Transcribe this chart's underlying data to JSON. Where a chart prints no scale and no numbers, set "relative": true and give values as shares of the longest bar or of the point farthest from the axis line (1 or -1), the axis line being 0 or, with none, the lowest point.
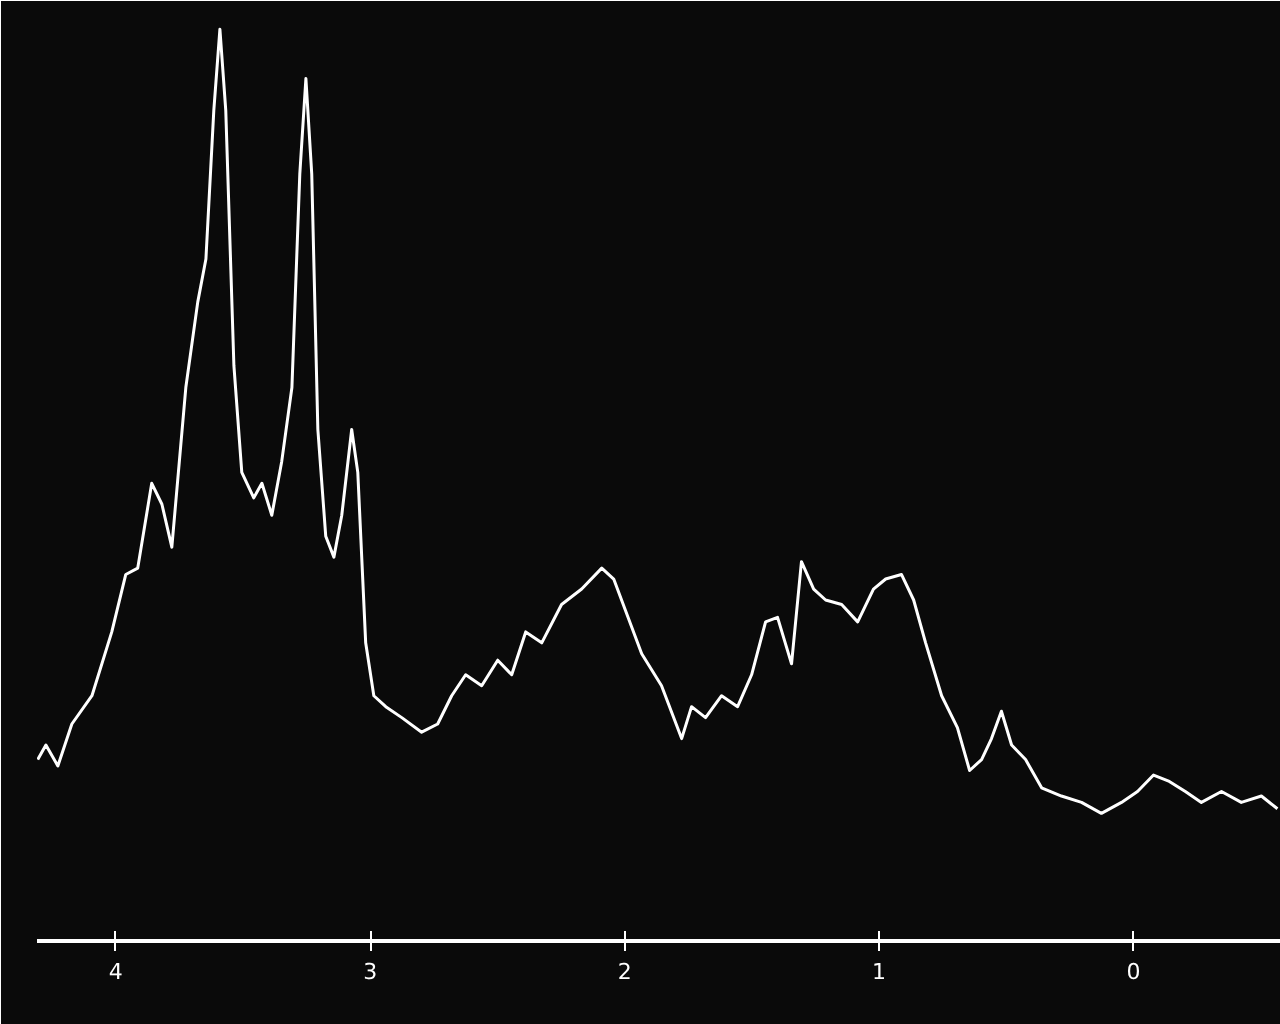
{
  "chart_data": {
    "type": "line",
    "relative": true,
    "xlim": [
      4.31,
      -0.58
    ],
    "xticks": [
      4,
      3,
      2,
      1,
      0
    ],
    "grid": false,
    "marker": "none",
    "line_style": "solid",
    "series": [
      {
        "color": "#ffffff",
        "x": [
          4.307,
          4.275,
          4.228,
          4.173,
          4.094,
          4.016,
          3.961,
          3.914,
          3.859,
          3.819,
          3.78,
          3.725,
          3.678,
          3.646,
          3.615,
          3.591,
          3.568,
          3.536,
          3.505,
          3.458,
          3.426,
          3.387,
          3.348,
          3.308,
          3.277,
          3.253,
          3.23,
          3.206,
          3.175,
          3.143,
          3.112,
          3.073,
          3.049,
          3.018,
          2.986,
          2.939,
          2.876,
          2.798,
          2.735,
          2.68,
          2.625,
          2.562,
          2.499,
          2.444,
          2.389,
          2.326,
          2.248,
          2.169,
          2.09,
          2.043,
          1.996,
          1.933,
          1.855,
          1.776,
          1.737,
          1.682,
          1.619,
          1.556,
          1.501,
          1.446,
          1.399,
          1.344,
          1.305,
          1.257,
          1.21,
          1.147,
          1.084,
          1.022,
          0.974,
          0.912,
          0.864,
          0.817,
          0.754,
          0.692,
          0.644,
          0.597,
          0.558,
          0.519,
          0.479,
          0.424,
          0.361,
          0.283,
          0.204,
          0.126,
          0.047,
          -0.016,
          -0.079,
          -0.141,
          -0.204,
          -0.267,
          -0.346,
          -0.424,
          -0.503,
          -0.566
        ],
        "values": [
          0.199,
          0.215,
          0.192,
          0.238,
          0.269,
          0.339,
          0.402,
          0.409,
          0.502,
          0.479,
          0.432,
          0.607,
          0.701,
          0.748,
          0.911,
          1,
          0.911,
          0.631,
          0.514,
          0.486,
          0.502,
          0.467,
          0.526,
          0.607,
          0.841,
          0.946,
          0.841,
          0.561,
          0.444,
          0.421,
          0.467,
          0.561,
          0.514,
          0.327,
          0.269,
          0.257,
          0.245,
          0.229,
          0.238,
          0.269,
          0.292,
          0.28,
          0.308,
          0.292,
          0.339,
          0.327,
          0.369,
          0.386,
          0.409,
          0.397,
          0.362,
          0.315,
          0.28,
          0.222,
          0.257,
          0.245,
          0.269,
          0.257,
          0.292,
          0.35,
          0.355,
          0.304,
          0.416,
          0.386,
          0.374,
          0.369,
          0.35,
          0.386,
          0.397,
          0.402,
          0.374,
          0.327,
          0.269,
          0.234,
          0.187,
          0.199,
          0.222,
          0.252,
          0.215,
          0.199,
          0.168,
          0.159,
          0.152,
          0.14,
          0.152,
          0.164,
          0.182,
          0.175,
          0.164,
          0.152,
          0.164,
          0.152,
          0.159,
          0.145
        ]
      }
    ]
  }
}
